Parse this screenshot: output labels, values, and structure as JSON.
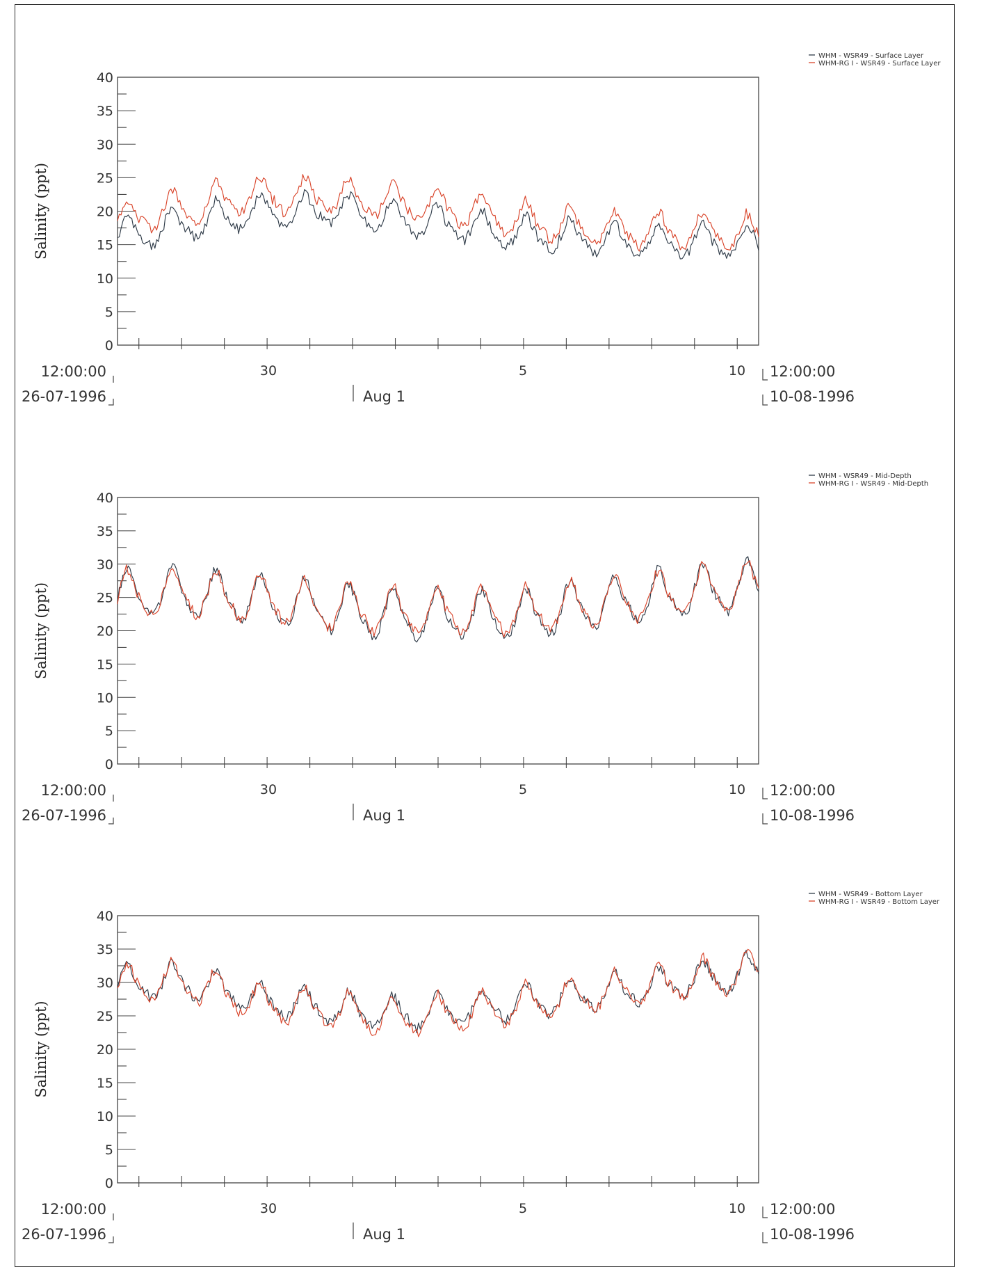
{
  "colors": {
    "whm": "#2f3b48",
    "rg": "#d9452b",
    "axis": "#444444"
  },
  "x_axis": {
    "start_time": "12:00:00",
    "start_date": "26-07-1996",
    "end_time": "12:00:00",
    "end_date": "10-08-1996",
    "month_label": "Aug 1",
    "tick_labels": [
      "30",
      "5",
      "10"
    ]
  },
  "chart_data": [
    {
      "type": "line",
      "ylabel": "Salinity (ppt)",
      "ylim": [
        0,
        40
      ],
      "yticks": [
        0,
        5,
        10,
        15,
        20,
        25,
        30,
        35,
        40
      ],
      "xlim": [
        "1996-07-26 12:00",
        "1996-08-10 12:00"
      ],
      "legend_position": "top-right, outside",
      "series": [
        {
          "name": "WHM - WSR49 - Surface Layer",
          "color": "#2f3b48",
          "start": 16.5,
          "end": 15.5,
          "trend": 0,
          "base_points": [
            [
              "1996-07-26 12:00",
              16.0
            ],
            [
              "1996-07-29 12:00",
              19.5
            ],
            [
              "1996-07-31 12:00",
              20.0
            ],
            [
              "1996-08-03 00:00",
              18.0
            ],
            [
              "1996-08-05 00:00",
              16.5
            ],
            [
              "1996-08-07 00:00",
              15.5
            ],
            [
              "1996-08-10 12:00",
              15.0
            ]
          ],
          "amplitude": 3.0,
          "peaks": [
            24.0,
            23.0,
            22.0
          ],
          "min": 12.0
        },
        {
          "name": "WHM-RG I - WSR49 - Surface Layer",
          "color": "#d9452b",
          "start": 18.0,
          "end": 16.5,
          "trend": 0,
          "base_points": [
            [
              "1996-07-26 12:00",
              18.5
            ],
            [
              "1996-07-29 12:00",
              22.0
            ],
            [
              "1996-07-31 12:00",
              22.0
            ],
            [
              "1996-08-03 00:00",
              20.5
            ],
            [
              "1996-08-05 00:00",
              18.5
            ],
            [
              "1996-08-07 00:00",
              17.0
            ],
            [
              "1996-08-10 12:00",
              16.5
            ]
          ],
          "amplitude": 3.2,
          "peaks": [
            27.0,
            27.0,
            27.0
          ],
          "min": 13.5
        }
      ]
    },
    {
      "type": "line",
      "ylabel": "Salinity (ppt)",
      "ylim": [
        0,
        40
      ],
      "yticks": [
        0,
        5,
        10,
        15,
        20,
        25,
        30,
        35,
        40
      ],
      "xlim": [
        "1996-07-26 12:00",
        "1996-08-10 12:00"
      ],
      "legend_position": "top-right, outside",
      "series": [
        {
          "name": "WHM - WSR49 - Mid-Depth",
          "color": "#2f3b48",
          "base_points": [
            [
              "1996-07-26 12:00",
              25.0
            ],
            [
              "1996-07-28 00:00",
              25.5
            ],
            [
              "1996-08-02 00:00",
              22.0
            ],
            [
              "1996-08-05 00:00",
              22.0
            ],
            [
              "1996-08-07 12:00",
              24.5
            ],
            [
              "1996-08-10 12:00",
              26.5
            ]
          ],
          "amplitude": 4.5,
          "peaks": [
            30.5,
            29.5,
            29.5
          ],
          "min": 17.0
        },
        {
          "name": "WHM-RG I - WSR49 - Mid-Depth",
          "color": "#d9452b",
          "base_points": [
            [
              "1996-07-26 12:00",
              25.0
            ],
            [
              "1996-07-28 00:00",
              25.5
            ],
            [
              "1996-08-02 00:00",
              22.5
            ],
            [
              "1996-08-05 00:00",
              22.5
            ],
            [
              "1996-08-07 12:00",
              24.5
            ],
            [
              "1996-08-10 12:00",
              26.5
            ]
          ],
          "amplitude": 4.3,
          "peaks": [
            30.5,
            29.5,
            29.5
          ],
          "min": 17.5
        }
      ]
    },
    {
      "type": "line",
      "ylabel": "Salinity (ppt)",
      "ylim": [
        0,
        40
      ],
      "yticks": [
        0,
        5,
        10,
        15,
        20,
        25,
        30,
        35,
        40
      ],
      "xlim": [
        "1996-07-26 12:00",
        "1996-08-10 12:00"
      ],
      "legend_position": "top-right, outside",
      "series": [
        {
          "name": "WHM - WSR49 - Bottom Layer",
          "color": "#2f3b48",
          "base_points": [
            [
              "1996-07-26 12:00",
              29.5
            ],
            [
              "1996-07-28 00:00",
              30.0
            ],
            [
              "1996-07-30 00:00",
              27.0
            ],
            [
              "1996-08-02 00:00",
              25.0
            ],
            [
              "1996-08-04 00:00",
              26.0
            ],
            [
              "1996-08-06 12:00",
              28.0
            ],
            [
              "1996-08-10 12:00",
              31.5
            ]
          ],
          "amplitude": 3.0,
          "peaks": [
            32.0,
            29.5,
            32.5
          ],
          "min": 19.5
        },
        {
          "name": "WHM-RG I - WSR49 - Bottom Layer",
          "color": "#d9452b",
          "base_points": [
            [
              "1996-07-26 12:00",
              29.5
            ],
            [
              "1996-07-28 00:00",
              30.0
            ],
            [
              "1996-07-30 00:00",
              26.5
            ],
            [
              "1996-08-02 00:00",
              24.5
            ],
            [
              "1996-08-04 00:00",
              25.5
            ],
            [
              "1996-08-06 12:00",
              28.0
            ],
            [
              "1996-08-10 12:00",
              31.5
            ]
          ],
          "amplitude": 3.4,
          "peaks": [
            32.0,
            29.5,
            32.5
          ],
          "min": 19.0
        }
      ]
    }
  ]
}
